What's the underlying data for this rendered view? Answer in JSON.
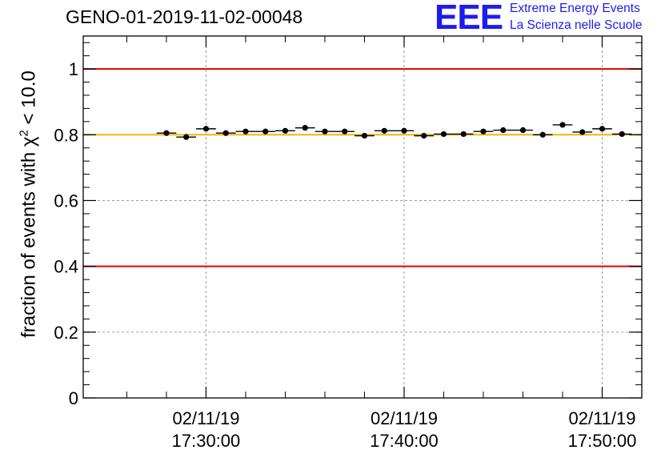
{
  "chart_data": {
    "type": "scatter",
    "title": "GENO-01-2019-11-02-00048",
    "ylabel_prefix": "fraction of events with ",
    "ylabel_symbol": "χ",
    "ylabel_sup": "2",
    "ylabel_suffix": " < 10.0",
    "xlabel": "",
    "ylim": [
      0,
      1.1
    ],
    "yticks": [
      0,
      0.2,
      0.4,
      0.6,
      0.8,
      1
    ],
    "ytick_labels": [
      "0",
      "0.2",
      "0.4",
      "0.6",
      "0.8",
      "1"
    ],
    "xlim_min": [
      -6.2,
      22.0
    ],
    "xticks_min": [
      0,
      10,
      20
    ],
    "xtick_labels": [
      {
        "date": "02/11/19",
        "time": "17:30:00"
      },
      {
        "date": "02/11/19",
        "time": "17:40:00"
      },
      {
        "date": "02/11/19",
        "time": "17:50:00"
      }
    ],
    "bin_width_min": 1,
    "x_min": [
      -2,
      -1,
      0,
      1,
      2,
      3,
      4,
      5,
      6,
      7,
      8,
      9,
      10,
      11,
      12,
      13,
      14,
      15,
      16,
      17,
      18,
      19,
      20,
      21
    ],
    "values": [
      0.805,
      0.793,
      0.818,
      0.805,
      0.81,
      0.81,
      0.812,
      0.821,
      0.81,
      0.81,
      0.797,
      0.812,
      0.812,
      0.797,
      0.802,
      0.802,
      0.81,
      0.814,
      0.814,
      0.8,
      0.83,
      0.808,
      0.818,
      0.802
    ],
    "reference_lines": [
      {
        "y": 1.0,
        "color": "#e00000"
      },
      {
        "y": 0.4,
        "color": "#e00000"
      },
      {
        "y": 0.8,
        "color": "#f0b800"
      }
    ],
    "grid": true
  },
  "logo": {
    "mark": "EEE",
    "line1": "Extreme Energy Events",
    "line2": "La Scienza nelle Scuole"
  }
}
